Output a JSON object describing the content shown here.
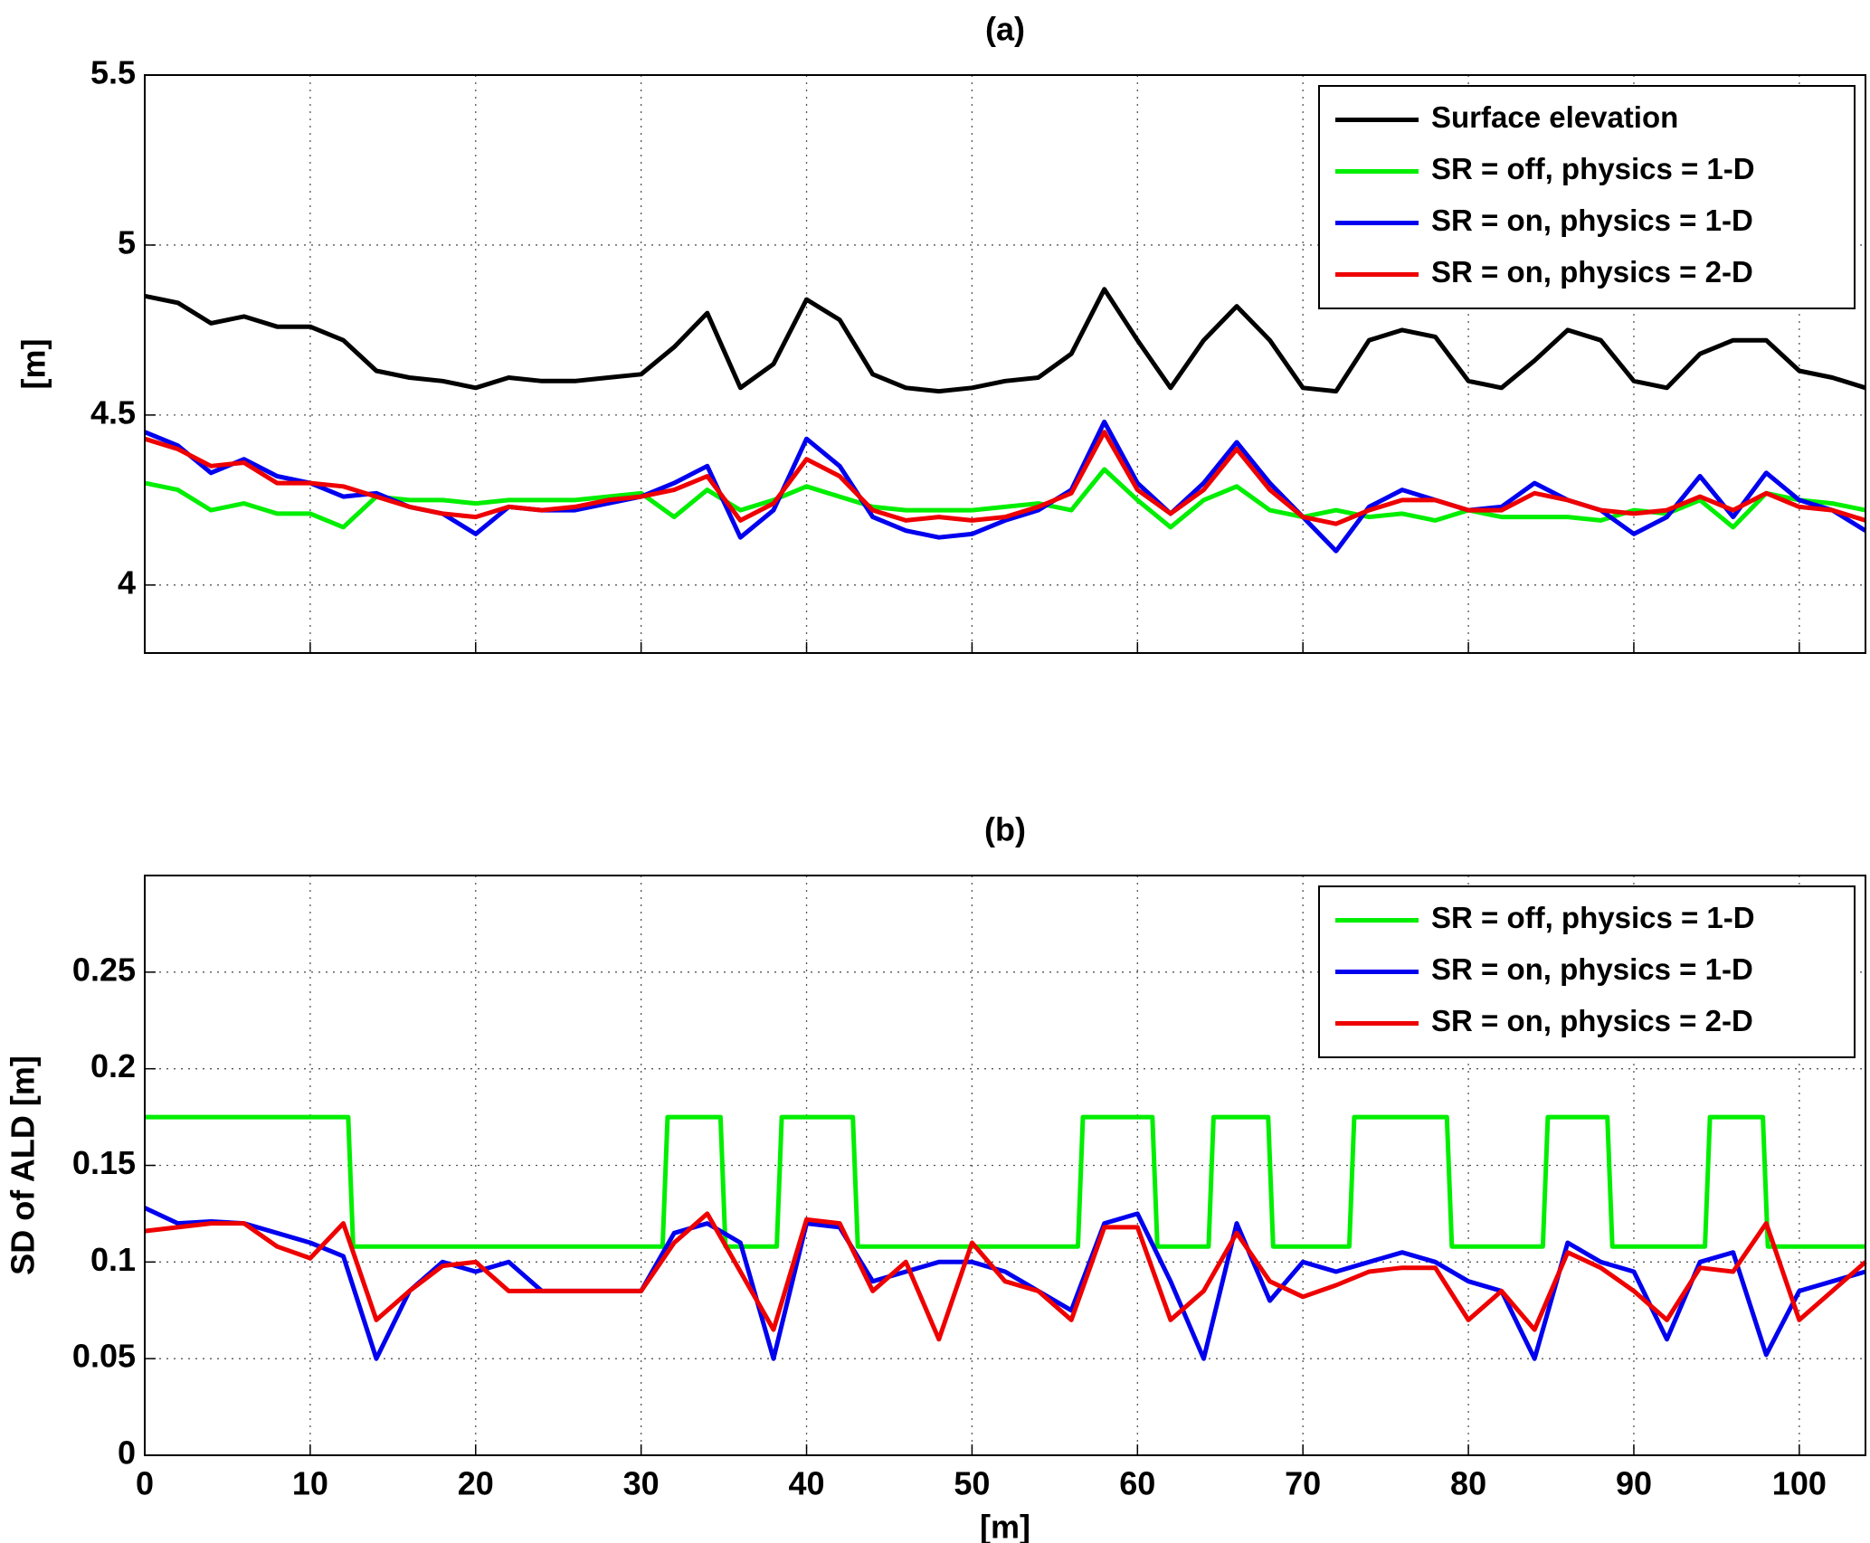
{
  "chart_data": [
    {
      "type": "line",
      "title": "(a)",
      "ylabel": "[m]",
      "xlim": [
        0,
        104
      ],
      "ylim": [
        3.8,
        5.5
      ],
      "xticks": [
        0,
        10,
        20,
        30,
        40,
        50,
        60,
        70,
        80,
        90,
        100
      ],
      "yticks": [
        4,
        4.5,
        5,
        5.5
      ],
      "grid": true,
      "show_xtick_labels": false,
      "legend": "upper right",
      "x": [
        0,
        2,
        4,
        6,
        8,
        10,
        12,
        14,
        16,
        18,
        20,
        22,
        24,
        26,
        28,
        30,
        32,
        34,
        36,
        38,
        40,
        42,
        44,
        46,
        48,
        50,
        52,
        54,
        56,
        58,
        60,
        62,
        64,
        66,
        68,
        70,
        72,
        74,
        76,
        78,
        80,
        82,
        84,
        86,
        88,
        90,
        92,
        94,
        96,
        98,
        100,
        102,
        104
      ],
      "series": [
        {
          "name": "Surface elevation",
          "color": "#000000",
          "values": [
            4.85,
            4.83,
            4.77,
            4.79,
            4.76,
            4.76,
            4.72,
            4.63,
            4.61,
            4.6,
            4.58,
            4.61,
            4.6,
            4.6,
            4.61,
            4.62,
            4.7,
            4.8,
            4.58,
            4.65,
            4.84,
            4.78,
            4.62,
            4.58,
            4.57,
            4.58,
            4.6,
            4.61,
            4.68,
            4.87,
            4.72,
            4.58,
            4.72,
            4.82,
            4.72,
            4.58,
            4.57,
            4.72,
            4.75,
            4.73,
            4.6,
            4.58,
            4.66,
            4.75,
            4.72,
            4.6,
            4.58,
            4.68,
            4.72,
            4.72,
            4.63,
            4.61,
            4.58
          ]
        },
        {
          "name": "SR = off, physics = 1-D",
          "color": "#00ee00",
          "values": [
            4.3,
            4.28,
            4.22,
            4.24,
            4.21,
            4.21,
            4.17,
            4.26,
            4.25,
            4.25,
            4.24,
            4.25,
            4.25,
            4.25,
            4.26,
            4.27,
            4.2,
            4.28,
            4.22,
            4.25,
            4.29,
            4.26,
            4.23,
            4.22,
            4.22,
            4.22,
            4.23,
            4.24,
            4.22,
            4.34,
            4.25,
            4.17,
            4.25,
            4.29,
            4.22,
            4.2,
            4.22,
            4.2,
            4.21,
            4.19,
            4.22,
            4.2,
            4.2,
            4.2,
            4.19,
            4.22,
            4.21,
            4.25,
            4.17,
            4.27,
            4.25,
            4.24,
            4.22
          ]
        },
        {
          "name": "SR = on, physics = 1-D",
          "color": "#0000ee",
          "values": [
            4.45,
            4.41,
            4.33,
            4.37,
            4.32,
            4.3,
            4.26,
            4.27,
            4.23,
            4.21,
            4.15,
            4.23,
            4.22,
            4.22,
            4.24,
            4.26,
            4.3,
            4.35,
            4.14,
            4.22,
            4.43,
            4.35,
            4.2,
            4.16,
            4.14,
            4.15,
            4.19,
            4.22,
            4.28,
            4.48,
            4.3,
            4.21,
            4.3,
            4.42,
            4.3,
            4.2,
            4.1,
            4.23,
            4.28,
            4.25,
            4.22,
            4.23,
            4.3,
            4.25,
            4.22,
            4.15,
            4.2,
            4.32,
            4.2,
            4.33,
            4.25,
            4.22,
            4.16
          ]
        },
        {
          "name": "SR = on, physics = 2-D",
          "color": "#ee0000",
          "values": [
            4.43,
            4.4,
            4.35,
            4.36,
            4.3,
            4.3,
            4.29,
            4.26,
            4.23,
            4.21,
            4.2,
            4.23,
            4.22,
            4.23,
            4.25,
            4.26,
            4.28,
            4.32,
            4.19,
            4.24,
            4.37,
            4.32,
            4.22,
            4.19,
            4.2,
            4.19,
            4.2,
            4.23,
            4.27,
            4.45,
            4.28,
            4.21,
            4.28,
            4.4,
            4.28,
            4.2,
            4.18,
            4.22,
            4.25,
            4.25,
            4.22,
            4.22,
            4.27,
            4.25,
            4.22,
            4.21,
            4.22,
            4.26,
            4.22,
            4.27,
            4.23,
            4.22,
            4.19
          ]
        }
      ]
    },
    {
      "type": "line",
      "title": "(b)",
      "xlabel": "[m]",
      "ylabel": "SD of ALD [m]",
      "xlim": [
        0,
        104
      ],
      "ylim": [
        0,
        0.3
      ],
      "xticks": [
        0,
        10,
        20,
        30,
        40,
        50,
        60,
        70,
        80,
        90,
        100
      ],
      "yticks": [
        0,
        0.05,
        0.1,
        0.15,
        0.2,
        0.25
      ],
      "grid": true,
      "show_xtick_labels": true,
      "legend": "upper right",
      "x": [
        0,
        2,
        4,
        6,
        8,
        10,
        12,
        14,
        16,
        18,
        20,
        22,
        24,
        26,
        28,
        30,
        32,
        34,
        36,
        38,
        40,
        42,
        44,
        46,
        48,
        50,
        52,
        54,
        56,
        58,
        60,
        62,
        64,
        66,
        68,
        70,
        72,
        74,
        76,
        78,
        80,
        82,
        84,
        86,
        88,
        90,
        92,
        94,
        96,
        98,
        100,
        102,
        104
      ],
      "series": [
        {
          "name": "SR = off, physics = 1-D",
          "color": "#00ee00",
          "x": [
            0,
            12.3,
            12.6,
            31.3,
            31.6,
            34.8,
            35.1,
            38.2,
            38.5,
            42.8,
            43.1,
            56.4,
            56.7,
            60.9,
            61.2,
            64.3,
            64.6,
            67.9,
            68.2,
            72.8,
            73.1,
            78.7,
            79,
            84.5,
            84.8,
            88.4,
            88.7,
            94.3,
            94.6,
            97.8,
            98.1,
            104
          ],
          "values": [
            0.175,
            0.175,
            0.108,
            0.108,
            0.175,
            0.175,
            0.108,
            0.108,
            0.175,
            0.175,
            0.108,
            0.108,
            0.175,
            0.175,
            0.108,
            0.108,
            0.175,
            0.175,
            0.108,
            0.108,
            0.175,
            0.175,
            0.108,
            0.108,
            0.175,
            0.175,
            0.108,
            0.108,
            0.175,
            0.175,
            0.108,
            0.108
          ]
        },
        {
          "name": "SR = on, physics = 1-D",
          "color": "#0000ee",
          "values": [
            0.128,
            0.12,
            0.121,
            0.12,
            0.115,
            0.11,
            0.103,
            0.05,
            0.085,
            0.1,
            0.095,
            0.1,
            0.085,
            0.085,
            0.085,
            0.085,
            0.115,
            0.12,
            0.11,
            0.05,
            0.12,
            0.118,
            0.09,
            0.095,
            0.1,
            0.1,
            0.095,
            0.085,
            0.075,
            0.12,
            0.125,
            0.09,
            0.05,
            0.12,
            0.08,
            0.1,
            0.095,
            0.1,
            0.105,
            0.1,
            0.09,
            0.085,
            0.05,
            0.11,
            0.1,
            0.095,
            0.06,
            0.1,
            0.105,
            0.052,
            0.085,
            0.09,
            0.095
          ]
        },
        {
          "name": "SR = on, physics = 2-D",
          "color": "#ee0000",
          "values": [
            0.116,
            0.118,
            0.12,
            0.12,
            0.108,
            0.102,
            0.12,
            0.07,
            0.085,
            0.098,
            0.1,
            0.085,
            0.085,
            0.085,
            0.085,
            0.085,
            0.11,
            0.125,
            0.095,
            0.065,
            0.122,
            0.12,
            0.085,
            0.1,
            0.06,
            0.11,
            0.09,
            0.085,
            0.07,
            0.118,
            0.118,
            0.07,
            0.085,
            0.115,
            0.09,
            0.082,
            0.088,
            0.095,
            0.097,
            0.097,
            0.07,
            0.085,
            0.065,
            0.105,
            0.097,
            0.085,
            0.07,
            0.097,
            0.095,
            0.12,
            0.07,
            0.085,
            0.1
          ]
        }
      ]
    }
  ]
}
